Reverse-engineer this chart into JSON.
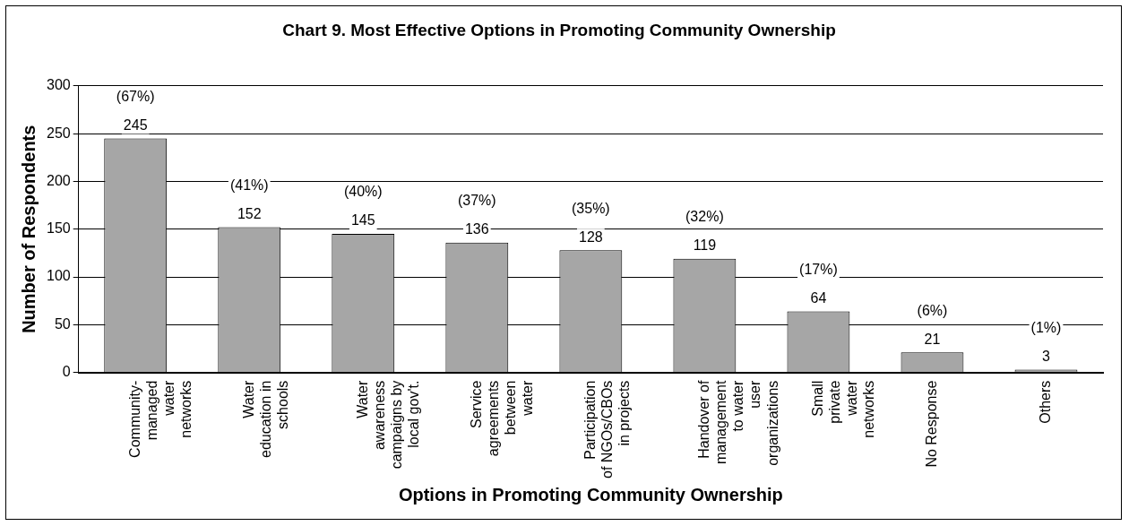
{
  "chart_data": {
    "type": "bar",
    "title": "Chart 9. Most Effective Options in Promoting Community Ownership",
    "xlabel": "Options in Promoting Community Ownership",
    "ylabel": "Number of Respondents",
    "categories": [
      "Community-managed water networks",
      "Water education in schools",
      "Water awareness campaigns by local gov't.",
      "Service agreements between water",
      "Participation of NGOs/CBOs in projects",
      "Handover of management to water user organizations",
      "Small private water networks",
      "No Response",
      "Others"
    ],
    "values": [
      245,
      152,
      145,
      136,
      128,
      119,
      64,
      21,
      3
    ],
    "value_labels": [
      "(67%)\n245",
      "(41%)\n152",
      "(40%)\n145",
      "(37%)\n136",
      "(35%)\n128",
      "(32%)\n119",
      "(17%)\n64",
      "(6%)\n21",
      "(1%)\n3"
    ],
    "color": "#a6a6a6",
    "ylim": [
      0,
      300
    ],
    "yticks": [
      0,
      50,
      100,
      150,
      200,
      250,
      300
    ],
    "grid": "y",
    "legend": false
  }
}
